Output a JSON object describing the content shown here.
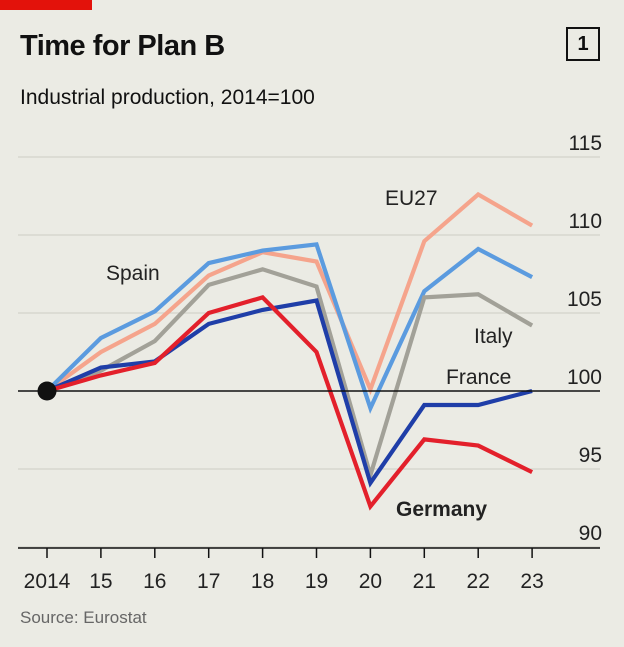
{
  "header": {
    "title": "Time for Plan B",
    "subtitle": "Industrial production, 2014=100",
    "chart_number": "1"
  },
  "footer": {
    "source": "Source: Eurostat"
  },
  "colors": {
    "accent": "#e3120b",
    "background": "#ebebe4",
    "gridline": "#d2d2cb",
    "baseline": "#111111"
  },
  "chart_data": {
    "type": "line",
    "title": "Time for Plan B",
    "subtitle": "Industrial production, 2014=100",
    "x": [
      2014,
      2015,
      2016,
      2017,
      2018,
      2019,
      2020,
      2021,
      2022,
      2023
    ],
    "x_tick_labels": [
      "2014",
      "15",
      "16",
      "17",
      "18",
      "19",
      "20",
      "21",
      "22",
      "23"
    ],
    "y_ticks": [
      90,
      95,
      100,
      105,
      110,
      115
    ],
    "ylim": [
      89,
      116
    ],
    "y_axis_side": "right",
    "grid": true,
    "baseline": 100,
    "series": [
      {
        "name": "EU27",
        "color": "#f5a48c",
        "values": [
          100,
          102.5,
          104.3,
          107.4,
          108.9,
          108.3,
          100.1,
          109.6,
          112.6,
          110.6
        ]
      },
      {
        "name": "Spain",
        "color": "#5b9bdf",
        "values": [
          100,
          103.4,
          105.1,
          108.2,
          109.0,
          109.4,
          98.9,
          106.4,
          109.1,
          107.3
        ]
      },
      {
        "name": "Italy",
        "color": "#a2a198",
        "values": [
          100,
          101.3,
          103.2,
          106.8,
          107.8,
          106.7,
          94.6,
          106.0,
          106.2,
          104.2
        ]
      },
      {
        "name": "France",
        "color": "#1f3ea8",
        "values": [
          100,
          101.5,
          101.9,
          104.3,
          105.2,
          105.8,
          94.1,
          99.1,
          99.1,
          100.0
        ]
      },
      {
        "name": "Germany",
        "color": "#e3202b",
        "values": [
          100,
          101.0,
          101.8,
          105.0,
          106.0,
          102.5,
          92.6,
          96.9,
          96.5,
          94.8
        ]
      }
    ],
    "series_labels": [
      {
        "name": "Spain",
        "text": "Spain"
      },
      {
        "name": "EU27",
        "text": "EU27"
      },
      {
        "name": "Italy",
        "text": "Italy"
      },
      {
        "name": "France",
        "text": "France"
      },
      {
        "name": "Germany",
        "text": "Germany"
      }
    ]
  }
}
